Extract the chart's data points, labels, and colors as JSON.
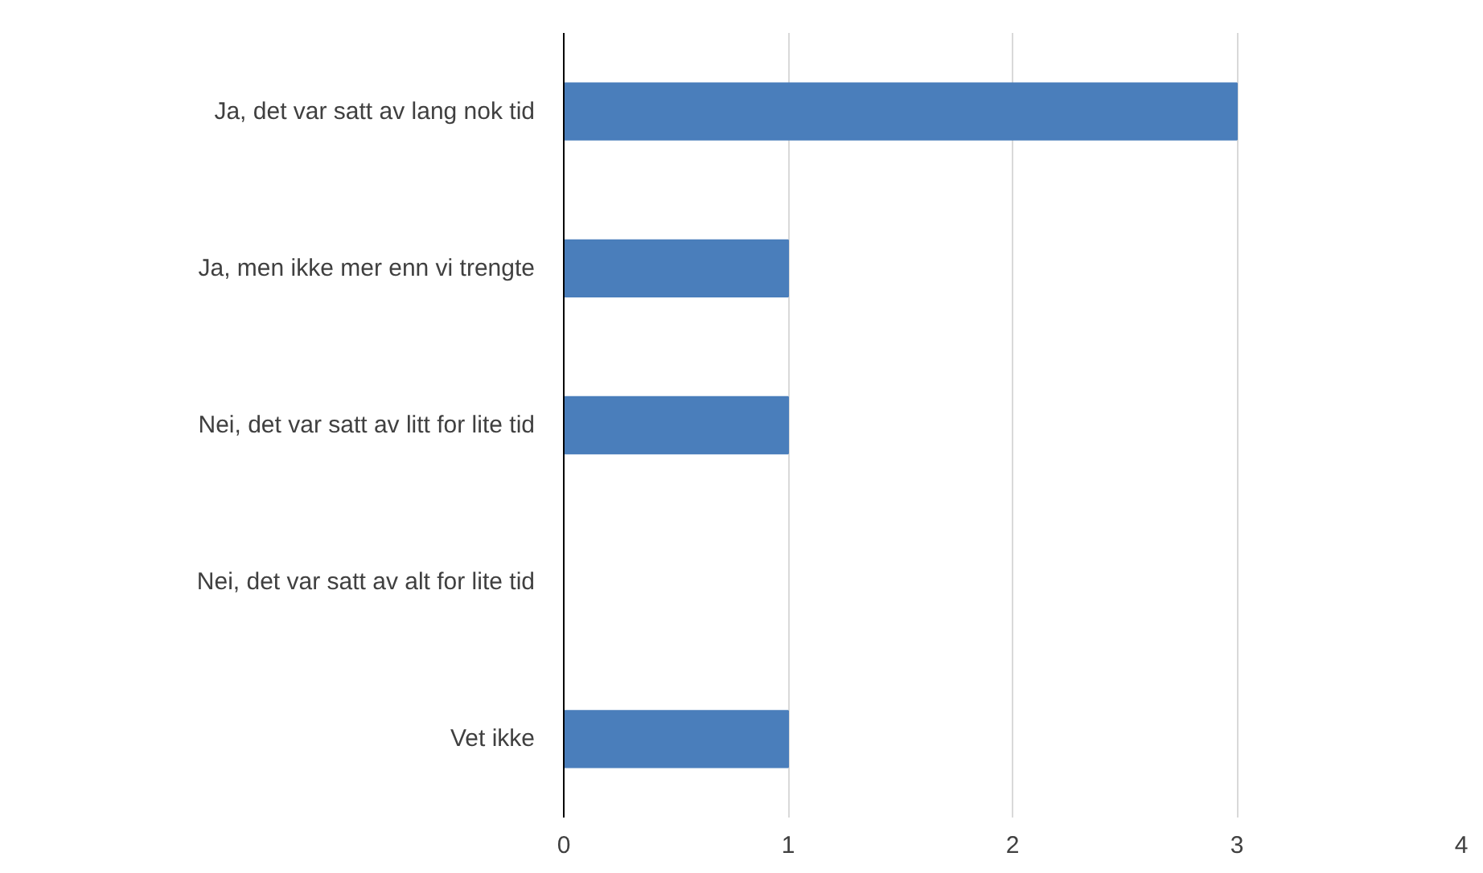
{
  "chart_data": {
    "type": "bar",
    "orientation": "horizontal",
    "categories": [
      "Ja, det var satt av lang nok tid",
      "Ja, men ikke mer enn vi trengte",
      "Nei, det var satt av litt for lite tid",
      "Nei, det var satt av alt for lite tid",
      "Vet ikke"
    ],
    "values": [
      3,
      1,
      1,
      0,
      1
    ],
    "color": "#4a7ebb",
    "xlim": [
      0,
      4
    ],
    "xticks": [
      0,
      1,
      2,
      3,
      4
    ],
    "grid": "x"
  }
}
